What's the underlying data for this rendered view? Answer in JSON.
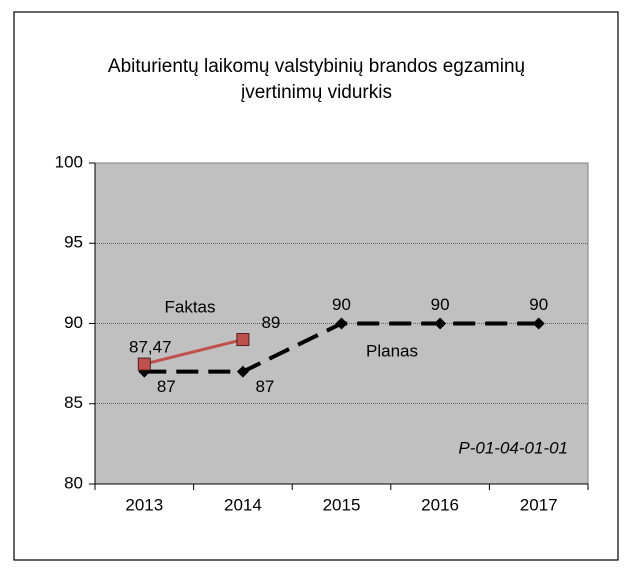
{
  "chart_data": {
    "type": "line",
    "title": "Abiturientų laikomų valstybinių brandos egzaminų įvertinimų vidurkis",
    "annotation": "P-01-04-01-01",
    "categories": [
      "2013",
      "2014",
      "2015",
      "2016",
      "2017"
    ],
    "series": [
      {
        "name": "Planas",
        "color": "#000000",
        "dashed": true,
        "marker": "diamond",
        "values": [
          87,
          87,
          90,
          90,
          90
        ]
      },
      {
        "name": "Faktas",
        "color": "#c0504d",
        "dashed": false,
        "marker": "square",
        "values": [
          87.47,
          89,
          null,
          null,
          null
        ],
        "value_labels": [
          "87,47",
          "89",
          null,
          null,
          null
        ]
      }
    ],
    "ylim": [
      80,
      100
    ],
    "yticks": [
      80,
      85,
      90,
      95,
      100
    ],
    "grid": true
  }
}
